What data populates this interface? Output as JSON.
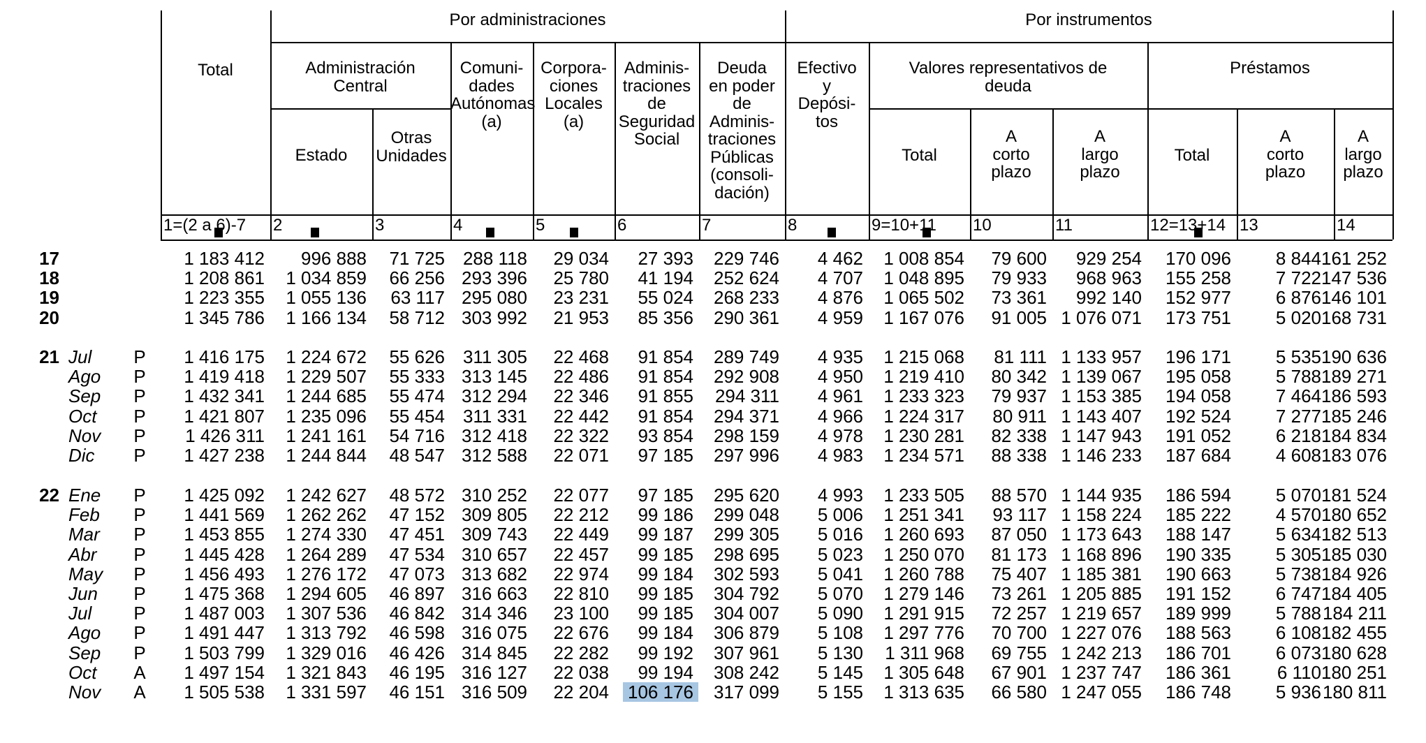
{
  "table": {
    "section_headers": {
      "administraciones": "Por administraciones",
      "instrumentos": "Por instrumentos"
    },
    "column_headers": {
      "total": "Total",
      "administracion_central": "Administración\nCentral",
      "estado": "Estado",
      "otras_unidades": "Otras\nUnidades",
      "comunidades_autonomas": "Comuni-\ndades\nAutónomas\n(a)",
      "corporaciones_locales": "Corpora-\nciones\nLocales\n(a)",
      "seguridad_social": "Adminis-\ntraciones\nde\nSeguridad\nSocial",
      "deuda_en_poder": "Deuda\nen poder\nde\nAdminis-\ntraciones\nPúblicas\n(consoli-\ndación)",
      "efectivo_depositos": "Efectivo\ny\nDepósi-\ntos",
      "valores_deuda": "Valores representativos de\ndeuda",
      "prestamos": "Préstamos",
      "valores_total": "Total",
      "valores_corto": "A\ncorto\nplazo",
      "valores_largo": "A\nlargo\nplazo",
      "prestamos_total": "Total",
      "prestamos_corto": "A\ncorto\nplazo",
      "prestamos_largo": "A\nlargo\nplazo"
    },
    "column_numbers": [
      "1=(2 a 6)-7",
      "2",
      "3",
      "4",
      "5",
      "6",
      "7",
      "8",
      "9=10+11",
      "10",
      "11",
      "12=13+14",
      "13",
      "14"
    ],
    "rows": [
      {
        "year": "17",
        "month": "",
        "status": "",
        "values": [
          "1 183 412",
          "996 888",
          "71 725",
          "288 118",
          "29 034",
          "27 393",
          "229 746",
          "4 462",
          "1 008 854",
          "79 600",
          "929 254",
          "170 096",
          "8 844",
          "161 252"
        ]
      },
      {
        "year": "18",
        "month": "",
        "status": "",
        "values": [
          "1 208 861",
          "1 034 859",
          "66 256",
          "293 396",
          "25 780",
          "41 194",
          "252 624",
          "4 707",
          "1 048 895",
          "79 933",
          "968 963",
          "155 258",
          "7 722",
          "147 536"
        ]
      },
      {
        "year": "19",
        "month": "",
        "status": "",
        "values": [
          "1 223 355",
          "1 055 136",
          "63 117",
          "295 080",
          "23 231",
          "55 024",
          "268 233",
          "4 876",
          "1 065 502",
          "73 361",
          "992 140",
          "152 977",
          "6 876",
          "146 101"
        ]
      },
      {
        "year": "20",
        "month": "",
        "status": "",
        "values": [
          "1 345 786",
          "1 166 134",
          "58 712",
          "303 992",
          "21 953",
          "85 356",
          "290 361",
          "4 959",
          "1 167 076",
          "91 005",
          "1 076 071",
          "173 751",
          "5 020",
          "168 731"
        ]
      },
      {
        "year": "21",
        "month": "Jul",
        "status": "P",
        "values": [
          "1 416 175",
          "1 224 672",
          "55 626",
          "311 305",
          "22 468",
          "91 854",
          "289 749",
          "4 935",
          "1 215 068",
          "81 111",
          "1 133 957",
          "196 171",
          "5 535",
          "190 636"
        ]
      },
      {
        "year": "",
        "month": "Ago",
        "status": "P",
        "values": [
          "1 419 418",
          "1 229 507",
          "55 333",
          "313 145",
          "22 486",
          "91 854",
          "292 908",
          "4 950",
          "1 219 410",
          "80 342",
          "1 139 067",
          "195 058",
          "5 788",
          "189 271"
        ]
      },
      {
        "year": "",
        "month": "Sep",
        "status": "P",
        "values": [
          "1 432 341",
          "1 244 685",
          "55 474",
          "312 294",
          "22 346",
          "91 855",
          "294 311",
          "4 961",
          "1 233 323",
          "79 937",
          "1 153 385",
          "194 058",
          "7 464",
          "186 593"
        ]
      },
      {
        "year": "",
        "month": "Oct",
        "status": "P",
        "values": [
          "1 421 807",
          "1 235 096",
          "55 454",
          "311 331",
          "22 442",
          "91 854",
          "294 371",
          "4 966",
          "1 224 317",
          "80 911",
          "1 143 407",
          "192 524",
          "7 277",
          "185 246"
        ]
      },
      {
        "year": "",
        "month": "Nov",
        "status": "P",
        "values": [
          "1 426 311",
          "1 241 161",
          "54 716",
          "312 418",
          "22 322",
          "93 854",
          "298 159",
          "4 978",
          "1 230 281",
          "82 338",
          "1 147 943",
          "191 052",
          "6 218",
          "184 834"
        ]
      },
      {
        "year": "",
        "month": "Dic",
        "status": "P",
        "values": [
          "1 427 238",
          "1 244 844",
          "48 547",
          "312 588",
          "22 071",
          "97 185",
          "297 996",
          "4 983",
          "1 234 571",
          "88 338",
          "1 146 233",
          "187 684",
          "4 608",
          "183 076"
        ]
      },
      {
        "year": "22",
        "month": "Ene",
        "status": "P",
        "values": [
          "1 425 092",
          "1 242 627",
          "48 572",
          "310 252",
          "22 077",
          "97 185",
          "295 620",
          "4 993",
          "1 233 505",
          "88 570",
          "1 144 935",
          "186 594",
          "5 070",
          "181 524"
        ]
      },
      {
        "year": "",
        "month": "Feb",
        "status": "P",
        "values": [
          "1 441 569",
          "1 262 262",
          "47 152",
          "309 805",
          "22 212",
          "99 186",
          "299 048",
          "5 006",
          "1 251 341",
          "93 117",
          "1 158 224",
          "185 222",
          "4 570",
          "180 652"
        ]
      },
      {
        "year": "",
        "month": "Mar",
        "status": "P",
        "values": [
          "1 453 855",
          "1 274 330",
          "47 451",
          "309 743",
          "22 449",
          "99 187",
          "299 305",
          "5 016",
          "1 260 693",
          "87 050",
          "1 173 643",
          "188 147",
          "5 634",
          "182 513"
        ]
      },
      {
        "year": "",
        "month": "Abr",
        "status": "P",
        "values": [
          "1 445 428",
          "1 264 289",
          "47 534",
          "310 657",
          "22 457",
          "99 185",
          "298 695",
          "5 023",
          "1 250 070",
          "81 173",
          "1 168 896",
          "190 335",
          "5 305",
          "185 030"
        ]
      },
      {
        "year": "",
        "month": "May",
        "status": "P",
        "values": [
          "1 456 493",
          "1 276 172",
          "47 073",
          "313 682",
          "22 974",
          "99 184",
          "302 593",
          "5 041",
          "1 260 788",
          "75 407",
          "1 185 381",
          "190 663",
          "5 738",
          "184 926"
        ]
      },
      {
        "year": "",
        "month": "Jun",
        "status": "P",
        "values": [
          "1 475 368",
          "1 294 605",
          "46 897",
          "316 663",
          "22 810",
          "99 185",
          "304 792",
          "5 070",
          "1 279 146",
          "73 261",
          "1 205 885",
          "191 152",
          "6 747",
          "184 405"
        ]
      },
      {
        "year": "",
        "month": "Jul",
        "status": "P",
        "values": [
          "1 487 003",
          "1 307 536",
          "46 842",
          "314 346",
          "23 100",
          "99 185",
          "304 007",
          "5 090",
          "1 291 915",
          "72 257",
          "1 219 657",
          "189 999",
          "5 788",
          "184 211"
        ]
      },
      {
        "year": "",
        "month": "Ago",
        "status": "P",
        "values": [
          "1 491 447",
          "1 313 792",
          "46 598",
          "316 075",
          "22 676",
          "99 184",
          "306 879",
          "5 108",
          "1 297 776",
          "70 700",
          "1 227 076",
          "188 563",
          "6 108",
          "182 455"
        ]
      },
      {
        "year": "",
        "month": "Sep",
        "status": "P",
        "values": [
          "1 503 799",
          "1 329 016",
          "46 426",
          "314 845",
          "22 282",
          "99 192",
          "307 961",
          "5 130",
          "1 311 968",
          "69 755",
          "1 242 213",
          "186 701",
          "6 073",
          "180 628"
        ]
      },
      {
        "year": "",
        "month": "Oct",
        "status": "A",
        "values": [
          "1 497 154",
          "1 321 843",
          "46 195",
          "316 127",
          "22 038",
          "99 194",
          "308 242",
          "5 145",
          "1 305 648",
          "67 901",
          "1 237 747",
          "186 361",
          "6 110",
          "180 251"
        ]
      },
      {
        "year": "",
        "month": "Nov",
        "status": "A",
        "values": [
          "1 505 538",
          "1 331 597",
          "46 151",
          "316 509",
          "22 204",
          "106 176",
          "317 099",
          "5 155",
          "1 313 635",
          "66 580",
          "1 247 055",
          "186 748",
          "5 936",
          "180 811"
        ]
      }
    ],
    "highlight": {
      "row_index": 20,
      "col_index": 5,
      "color": "#a7c6e2"
    }
  }
}
